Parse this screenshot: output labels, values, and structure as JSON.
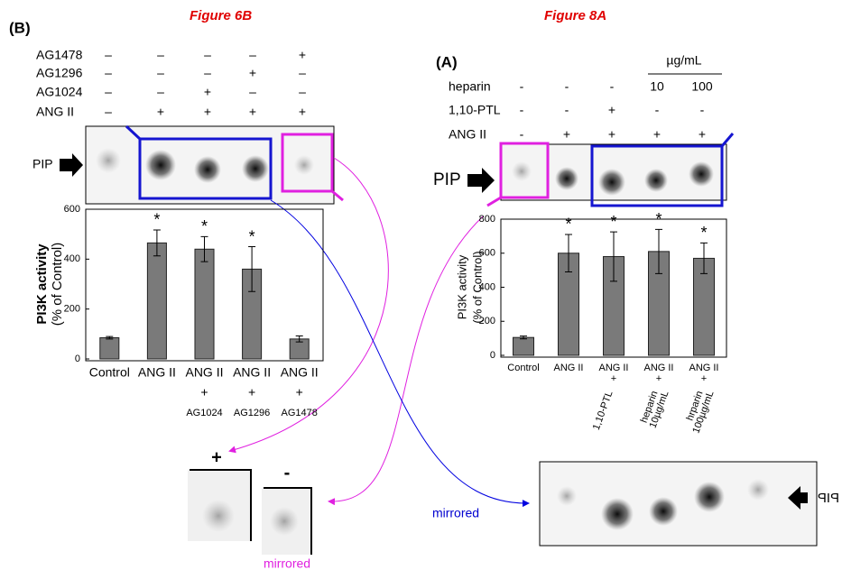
{
  "figure_6b": {
    "panel": "(B)",
    "title": "Figure 6B",
    "blot_label": "PIP",
    "treatments": [
      {
        "label": "AG1478",
        "signs": [
          "–",
          "–",
          "–",
          "–",
          "+"
        ]
      },
      {
        "label": "AG1296",
        "signs": [
          "–",
          "–",
          "–",
          "+",
          "–"
        ]
      },
      {
        "label": "AG1024",
        "signs": [
          "–",
          "–",
          "+",
          "–",
          "–"
        ]
      },
      {
        "label": "ANG II",
        "signs": [
          "–",
          "+",
          "+",
          "+",
          "+"
        ]
      }
    ]
  },
  "figure_8a": {
    "panel": "(A)",
    "title": "Figure 8A",
    "blot_label": "PIP",
    "unit": "µg/mL",
    "treatments": [
      {
        "label": "heparin",
        "signs": [
          "-",
          "-",
          "-",
          "10",
          "100"
        ]
      },
      {
        "label": "1,10-PTL",
        "signs": [
          "-",
          "-",
          "+",
          "-",
          "-"
        ]
      },
      {
        "label": "ANG II",
        "signs": [
          "-",
          "+",
          "+",
          "+",
          "+"
        ]
      }
    ]
  },
  "bottom": {
    "plus": "+",
    "minus": "-",
    "mirrored_left": "mirrored",
    "mirrored_right": "mirrored",
    "blot_label": "PIP"
  },
  "chart_data": [
    {
      "type": "bar",
      "y_label": [
        "PI3K activity",
        "(% of Control)"
      ],
      "categories": [
        [
          "Control"
        ],
        [
          "ANG II"
        ],
        [
          "ANG II",
          "+",
          "AG1024"
        ],
        [
          "ANG II",
          "+",
          "AG1296"
        ],
        [
          "ANG II",
          "+",
          "AG1478"
        ]
      ],
      "values": [
        85,
        465,
        440,
        360,
        80
      ],
      "errors": [
        5,
        52,
        50,
        90,
        12
      ],
      "significance": [
        null,
        "*",
        "*",
        "*",
        null
      ],
      "color": "#7a7a7a",
      "ylim": [
        0,
        600
      ],
      "yticks": [
        0,
        200,
        400,
        600
      ]
    },
    {
      "type": "bar",
      "y_label": [
        "PI3K activity",
        "(% of Control)"
      ],
      "categories": [
        [
          "Control"
        ],
        [
          "ANG II"
        ],
        [
          "ANG II",
          "+"
        ],
        [
          "ANG II",
          "+"
        ],
        [
          "ANG II",
          "+"
        ]
      ],
      "rotated_sublabels": [
        null,
        null,
        [
          "1,10-PTL"
        ],
        [
          "heparin",
          "10µg/mL"
        ],
        [
          "hrparin",
          "100µg/mL"
        ]
      ],
      "values": [
        105,
        600,
        580,
        610,
        570
      ],
      "errors": [
        8,
        110,
        145,
        130,
        90
      ],
      "significance": [
        null,
        "*",
        "*",
        "*",
        "*"
      ],
      "color": "#7a7a7a",
      "ylim": [
        0,
        800
      ],
      "yticks": [
        0,
        200,
        400,
        600,
        800
      ]
    }
  ]
}
